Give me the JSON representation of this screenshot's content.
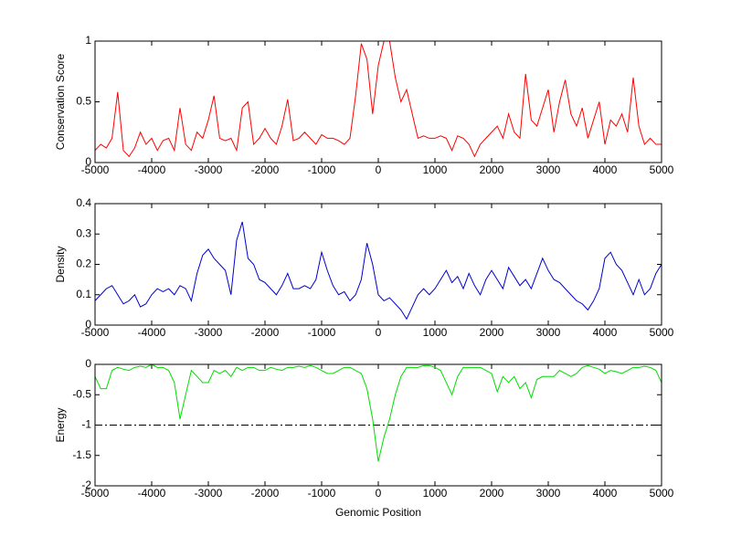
{
  "chart_data": [
    {
      "type": "line",
      "ylabel": "Conservation Score",
      "x": [
        -5000,
        -4900,
        -4800,
        -4700,
        -4600,
        -4500,
        -4400,
        -4300,
        -4200,
        -4100,
        -4000,
        -3900,
        -3800,
        -3700,
        -3600,
        -3500,
        -3400,
        -3300,
        -3200,
        -3100,
        -3000,
        -2900,
        -2800,
        -2700,
        -2600,
        -2500,
        -2400,
        -2300,
        -2200,
        -2100,
        -2000,
        -1900,
        -1800,
        -1700,
        -1600,
        -1500,
        -1400,
        -1300,
        -1200,
        -1100,
        -1000,
        -900,
        -800,
        -700,
        -600,
        -500,
        -400,
        -300,
        -200,
        -100,
        0,
        100,
        200,
        300,
        400,
        500,
        600,
        700,
        800,
        900,
        1000,
        1100,
        1200,
        1300,
        1400,
        1500,
        1600,
        1700,
        1800,
        1900,
        2000,
        2100,
        2200,
        2300,
        2400,
        2500,
        2600,
        2700,
        2800,
        2900,
        3000,
        3100,
        3200,
        3300,
        3400,
        3500,
        3600,
        3700,
        3800,
        3900,
        4000,
        4100,
        4200,
        4300,
        4400,
        4500,
        4600,
        4700,
        4800,
        4900,
        5000
      ],
      "series": [
        {
          "color": "#ff0000",
          "values": [
            0.1,
            0.15,
            0.12,
            0.2,
            0.58,
            0.1,
            0.05,
            0.12,
            0.25,
            0.15,
            0.2,
            0.1,
            0.18,
            0.2,
            0.1,
            0.45,
            0.15,
            0.1,
            0.25,
            0.2,
            0.35,
            0.55,
            0.2,
            0.18,
            0.2,
            0.1,
            0.45,
            0.5,
            0.15,
            0.2,
            0.28,
            0.2,
            0.15,
            0.3,
            0.52,
            0.18,
            0.2,
            0.25,
            0.2,
            0.15,
            0.23,
            0.2,
            0.2,
            0.18,
            0.15,
            0.2,
            0.55,
            0.98,
            0.85,
            0.4,
            0.8,
            1,
            1,
            0.7,
            0.5,
            0.6,
            0.4,
            0.2,
            0.22,
            0.2,
            0.2,
            0.22,
            0.2,
            0.1,
            0.22,
            0.2,
            0.15,
            0.05,
            0.15,
            0.2,
            0.25,
            0.3,
            0.2,
            0.4,
            0.25,
            0.2,
            0.73,
            0.35,
            0.3,
            0.45,
            0.6,
            0.25,
            0.5,
            0.68,
            0.4,
            0.3,
            0.45,
            0.2,
            0.35,
            0.5,
            0.15,
            0.35,
            0.3,
            0.4,
            0.25,
            0.7,
            0.3,
            0.15,
            0.2,
            0.15,
            0.15
          ]
        }
      ],
      "xlim": [
        -5000,
        5000
      ],
      "xticks": [
        -5000,
        -4000,
        -3000,
        -2000,
        -1000,
        0,
        1000,
        2000,
        3000,
        4000,
        5000
      ],
      "ylim": [
        0,
        1
      ],
      "yticks": [
        0,
        0.5,
        1
      ]
    },
    {
      "type": "line",
      "ylabel": "Density",
      "x": [
        -5000,
        -4900,
        -4800,
        -4700,
        -4600,
        -4500,
        -4400,
        -4300,
        -4200,
        -4100,
        -4000,
        -3900,
        -3800,
        -3700,
        -3600,
        -3500,
        -3400,
        -3300,
        -3200,
        -3100,
        -3000,
        -2900,
        -2800,
        -2700,
        -2600,
        -2500,
        -2400,
        -2300,
        -2200,
        -2100,
        -2000,
        -1900,
        -1800,
        -1700,
        -1600,
        -1500,
        -1400,
        -1300,
        -1200,
        -1100,
        -1000,
        -900,
        -800,
        -700,
        -600,
        -500,
        -400,
        -300,
        -200,
        -100,
        0,
        100,
        200,
        300,
        400,
        500,
        600,
        700,
        800,
        900,
        1000,
        1100,
        1200,
        1300,
        1400,
        1500,
        1600,
        1700,
        1800,
        1900,
        2000,
        2100,
        2200,
        2300,
        2400,
        2500,
        2600,
        2700,
        2800,
        2900,
        3000,
        3100,
        3200,
        3300,
        3400,
        3500,
        3600,
        3700,
        3800,
        3900,
        4000,
        4100,
        4200,
        4300,
        4400,
        4500,
        4600,
        4700,
        4800,
        4900,
        5000
      ],
      "series": [
        {
          "color": "#0000cc",
          "values": [
            0.08,
            0.1,
            0.12,
            0.13,
            0.1,
            0.07,
            0.08,
            0.1,
            0.06,
            0.07,
            0.1,
            0.12,
            0.11,
            0.12,
            0.1,
            0.13,
            0.12,
            0.08,
            0.17,
            0.23,
            0.25,
            0.22,
            0.2,
            0.18,
            0.1,
            0.28,
            0.34,
            0.22,
            0.2,
            0.15,
            0.14,
            0.12,
            0.1,
            0.13,
            0.17,
            0.12,
            0.12,
            0.13,
            0.12,
            0.15,
            0.24,
            0.18,
            0.13,
            0.1,
            0.11,
            0.08,
            0.1,
            0.15,
            0.27,
            0.2,
            0.1,
            0.08,
            0.09,
            0.07,
            0.05,
            0.02,
            0.06,
            0.1,
            0.12,
            0.1,
            0.12,
            0.15,
            0.18,
            0.14,
            0.16,
            0.12,
            0.17,
            0.13,
            0.1,
            0.15,
            0.18,
            0.15,
            0.12,
            0.19,
            0.16,
            0.13,
            0.15,
            0.12,
            0.17,
            0.22,
            0.18,
            0.15,
            0.14,
            0.12,
            0.1,
            0.08,
            0.07,
            0.05,
            0.08,
            0.12,
            0.22,
            0.24,
            0.2,
            0.18,
            0.14,
            0.1,
            0.15,
            0.1,
            0.12,
            0.17,
            0.2
          ]
        }
      ],
      "xlim": [
        -5000,
        5000
      ],
      "xticks": [
        -5000,
        -4000,
        -3000,
        -2000,
        -1000,
        0,
        1000,
        2000,
        3000,
        4000,
        5000
      ],
      "ylim": [
        0,
        0.4
      ],
      "yticks": [
        0,
        0.1,
        0.2,
        0.3,
        0.4
      ]
    },
    {
      "type": "line",
      "ylabel": "Energy",
      "xlabel": "Genomic Position",
      "hline": -1,
      "x": [
        -5000,
        -4900,
        -4800,
        -4700,
        -4600,
        -4500,
        -4400,
        -4300,
        -4200,
        -4100,
        -4000,
        -3900,
        -3800,
        -3700,
        -3600,
        -3500,
        -3400,
        -3300,
        -3200,
        -3100,
        -3000,
        -2900,
        -2800,
        -2700,
        -2600,
        -2500,
        -2400,
        -2300,
        -2200,
        -2100,
        -2000,
        -1900,
        -1800,
        -1700,
        -1600,
        -1500,
        -1400,
        -1300,
        -1200,
        -1100,
        -1000,
        -900,
        -800,
        -700,
        -600,
        -500,
        -400,
        -300,
        -200,
        -100,
        0,
        100,
        200,
        300,
        400,
        500,
        600,
        700,
        800,
        900,
        1000,
        1100,
        1200,
        1300,
        1400,
        1500,
        1600,
        1700,
        1800,
        1900,
        2000,
        2100,
        2200,
        2300,
        2400,
        2500,
        2600,
        2700,
        2800,
        2900,
        3000,
        3100,
        3200,
        3300,
        3400,
        3500,
        3600,
        3700,
        3800,
        3900,
        4000,
        4100,
        4200,
        4300,
        4400,
        4500,
        4600,
        4700,
        4800,
        4900,
        5000
      ],
      "series": [
        {
          "color": "#00dd00",
          "values": [
            -0.2,
            -0.4,
            -0.4,
            -0.1,
            -0.05,
            -0.08,
            -0.1,
            -0.05,
            -0.03,
            -0.05,
            0,
            -0.05,
            -0.05,
            -0.1,
            -0.3,
            -0.9,
            -0.5,
            -0.1,
            -0.2,
            -0.3,
            -0.3,
            -0.1,
            -0.15,
            -0.1,
            -0.2,
            -0.05,
            -0.1,
            -0.05,
            -0.05,
            -0.1,
            -0.1,
            -0.05,
            -0.08,
            -0.1,
            -0.05,
            -0.05,
            -0.03,
            -0.05,
            -0.02,
            -0.05,
            -0.1,
            -0.15,
            -0.15,
            -0.1,
            -0.05,
            -0.05,
            -0.1,
            -0.15,
            -0.4,
            -0.9,
            -1.6,
            -1.2,
            -0.9,
            -0.5,
            -0.2,
            -0.05,
            -0.05,
            -0.05,
            -0.02,
            -0.02,
            -0.05,
            -0.1,
            -0.3,
            -0.5,
            -0.2,
            -0.05,
            -0.05,
            -0.05,
            -0.05,
            -0.1,
            -0.15,
            -0.45,
            -0.2,
            -0.3,
            -0.2,
            -0.4,
            -0.3,
            -0.55,
            -0.25,
            -0.2,
            -0.2,
            -0.2,
            -0.1,
            -0.15,
            -0.2,
            -0.15,
            -0.05,
            -0.02,
            -0.05,
            -0.08,
            -0.15,
            -0.1,
            -0.12,
            -0.15,
            -0.1,
            -0.05,
            -0.05,
            -0.03,
            -0.05,
            -0.1,
            -0.3
          ]
        }
      ],
      "xlim": [
        -5000,
        5000
      ],
      "xticks": [
        -5000,
        -4000,
        -3000,
        -2000,
        -1000,
        0,
        1000,
        2000,
        3000,
        4000,
        5000
      ],
      "ylim": [
        -2,
        0
      ],
      "yticks": [
        -2,
        -1.5,
        -1,
        -0.5,
        0
      ]
    }
  ]
}
